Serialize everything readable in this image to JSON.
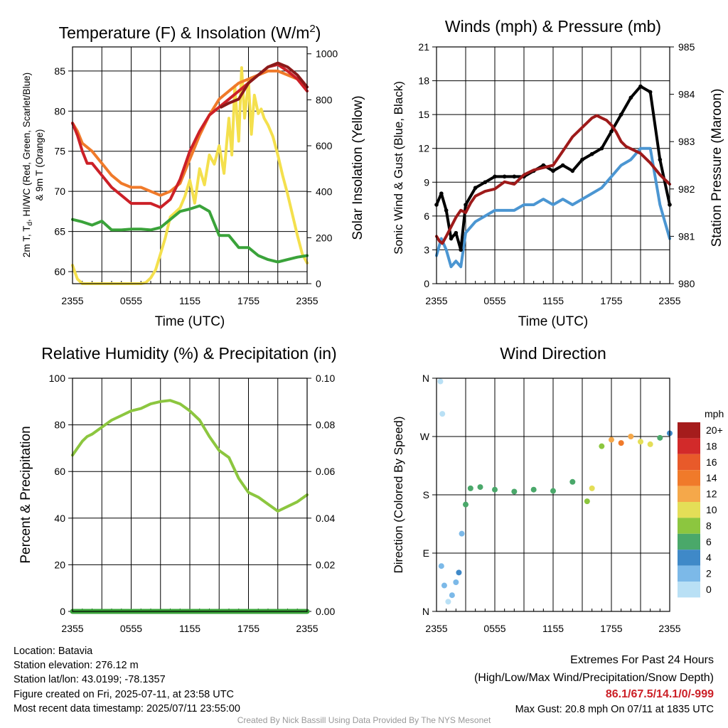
{
  "chart_data": [
    {
      "type": "line",
      "title": "Temperature (F) & Insolation (W/m²)",
      "title_main": "Temperature (F) & Insolation (W/m",
      "title_sup": "2",
      "title_end": ")",
      "xlabel": "Time (UTC)",
      "ylabel_left_line1": "2m T, T",
      "ylabel_left_sub": "d",
      "ylabel_left_line1_end": ", HI/WC (Red, Green, Scarlet/Blue)",
      "ylabel_left_line2": "& 9m T (Orange)",
      "ylabel_right": "Solar Insolation (Yellow)",
      "x_ticks": [
        "2355",
        "0555",
        "1155",
        "1755",
        "2355"
      ],
      "y_ticks_left": [
        60,
        65,
        70,
        75,
        80,
        85
      ],
      "ylim_left": [
        58.5,
        88
      ],
      "y_ticks_right": [
        0,
        200,
        400,
        600,
        800,
        1000
      ],
      "ylim_right": [
        0,
        1030
      ],
      "grid": true,
      "series": [
        {
          "color": "#f4e04d",
          "axis": "right",
          "x": [
            0,
            0.2,
            0.5,
            1,
            2,
            3,
            4,
            5,
            6,
            7,
            7.5,
            8,
            8.5,
            9,
            9.5,
            10,
            10.5,
            11,
            11.5,
            12,
            12.5,
            13,
            13.5,
            14,
            14.5,
            15,
            15.5,
            16,
            16.3,
            16.6,
            17,
            17.3,
            17.6,
            18,
            18.3,
            18.6,
            19,
            19.3,
            19.6,
            20,
            20.5,
            21,
            21.5,
            22,
            22.5,
            23,
            23.5,
            24
          ],
          "values": [
            80,
            55,
            20,
            0,
            0,
            0,
            0,
            0,
            0,
            0,
            5,
            25,
            60,
            130,
            200,
            290,
            310,
            330,
            380,
            450,
            350,
            500,
            430,
            560,
            520,
            600,
            480,
            720,
            560,
            860,
            620,
            940,
            720,
            880,
            650,
            820,
            740,
            760,
            720,
            690,
            640,
            560,
            470,
            390,
            300,
            210,
            130,
            90
          ]
        },
        {
          "color": "#f07a2a",
          "axis": "left",
          "x": [
            0,
            0.5,
            1,
            1.5,
            2,
            3,
            4,
            5,
            6,
            7,
            8,
            9,
            10,
            11,
            12,
            13,
            14,
            15,
            16,
            17,
            18,
            19,
            20,
            21,
            22,
            23,
            24
          ],
          "values": [
            78.5,
            77.5,
            76,
            75.5,
            75,
            73.5,
            72,
            71,
            70.5,
            70.5,
            70,
            69.5,
            70,
            71,
            74,
            77,
            79.5,
            81.5,
            82.5,
            83.5,
            84,
            84.5,
            85,
            85,
            84.5,
            84,
            83
          ]
        },
        {
          "color": "#cc2027",
          "axis": "left",
          "x": [
            0,
            0.5,
            1,
            1.5,
            2,
            3,
            4,
            5,
            6,
            7,
            8,
            9,
            10,
            11,
            12,
            13,
            14,
            15,
            16,
            17,
            18,
            19,
            20,
            21,
            22,
            23,
            24
          ],
          "values": [
            78.5,
            77,
            75,
            73.5,
            73.5,
            72,
            70.5,
            69.5,
            68.5,
            68.5,
            68.5,
            68,
            69,
            71.5,
            75,
            77.5,
            79.5,
            80.5,
            81.5,
            82.5,
            83.5,
            84.5,
            85.5,
            85.8,
            85,
            84,
            82.5
          ]
        },
        {
          "color": "#8b1a1a",
          "axis": "left",
          "x": [
            15.2,
            16,
            17,
            18,
            19,
            20,
            21,
            22,
            23,
            24
          ],
          "values": [
            80.5,
            81,
            81.5,
            83.5,
            84.5,
            85.5,
            86,
            85.5,
            84.5,
            83
          ]
        },
        {
          "color": "#3aa33a",
          "axis": "left",
          "x": [
            0,
            1,
            2,
            3,
            4,
            5,
            6,
            7,
            8,
            9,
            10,
            11,
            12,
            13,
            14,
            15,
            16,
            17,
            18,
            19,
            20,
            21,
            22,
            23,
            24
          ],
          "values": [
            66.5,
            66.2,
            65.8,
            66.3,
            65.2,
            65.2,
            65.3,
            65.3,
            65.2,
            65.5,
            66.5,
            67.5,
            67.8,
            68.2,
            67.5,
            64.5,
            64.5,
            63,
            63,
            62,
            61.5,
            61.2,
            61.5,
            61.8,
            62
          ]
        }
      ]
    },
    {
      "type": "line",
      "title": "Winds (mph) & Pressure (mb)",
      "xlabel": "Time (UTC)",
      "ylabel_left": "Sonic Wind & Gust (Blue, Black)",
      "ylabel_right": "Station Pressure (Maroon)",
      "x_ticks": [
        "2355",
        "0555",
        "1155",
        "1755",
        "2355"
      ],
      "y_ticks_left": [
        0,
        3,
        6,
        9,
        12,
        15,
        18,
        21
      ],
      "ylim_left": [
        0,
        21
      ],
      "y_ticks_right": [
        980,
        981,
        982,
        983,
        984,
        985
      ],
      "ylim_right": [
        980,
        985
      ],
      "grid": true,
      "series": [
        {
          "color": "#4b96d2",
          "axis": "left",
          "x": [
            0,
            0.5,
            1,
            1.5,
            2,
            2.5,
            3,
            4,
            5,
            6,
            7,
            8,
            9,
            10,
            11,
            12,
            13,
            14,
            15,
            16,
            17,
            18,
            19,
            20,
            21,
            22,
            23,
            24
          ],
          "values": [
            2.5,
            4,
            3,
            1.5,
            2,
            1.5,
            4.5,
            5.5,
            6,
            6.5,
            6.5,
            6.5,
            7,
            7,
            7.5,
            7,
            7.5,
            7,
            7.5,
            8,
            8.5,
            9.5,
            10.5,
            11,
            12,
            12,
            7,
            4
          ]
        },
        {
          "color": "#000000",
          "axis": "left",
          "x": [
            0,
            0.5,
            1,
            1.5,
            2,
            2.5,
            3,
            4,
            5,
            6,
            7,
            8,
            9,
            10,
            11,
            12,
            13,
            14,
            15,
            16,
            17,
            18,
            19,
            20,
            21,
            22,
            23,
            24
          ],
          "values": [
            7,
            8,
            6.5,
            4,
            4.5,
            3,
            7,
            8.5,
            9,
            9.5,
            9.5,
            9.5,
            9.5,
            10,
            10.5,
            10,
            10.5,
            10,
            11,
            11.5,
            12,
            13.5,
            15,
            16.5,
            17.5,
            17,
            11,
            7
          ]
        },
        {
          "color": "#9e1a1a",
          "axis": "right",
          "x": [
            0,
            0.3,
            0.6,
            1,
            1.5,
            2,
            2.5,
            3,
            3.5,
            4,
            5,
            6,
            7,
            8,
            9,
            10,
            11,
            12,
            13,
            14,
            15,
            16,
            16.5,
            17,
            17.5,
            18,
            18.5,
            19,
            19.5,
            20,
            21,
            22,
            23,
            24
          ],
          "values": [
            981.0,
            980.9,
            980.85,
            981.0,
            981.2,
            981.4,
            981.55,
            981.5,
            981.7,
            981.85,
            981.95,
            982.0,
            982.15,
            982.1,
            982.3,
            982.4,
            982.45,
            982.5,
            982.8,
            983.1,
            983.3,
            983.5,
            983.55,
            983.5,
            983.45,
            983.35,
            983.2,
            983.0,
            982.9,
            982.85,
            982.75,
            982.55,
            982.3,
            982.1
          ]
        }
      ]
    },
    {
      "type": "line",
      "title": "Relative Humidity (%) & Precipitation (in)",
      "ylabel_left": "Percent & Precipitation",
      "x_ticks": [
        "2355",
        "0555",
        "1155",
        "1755",
        "2355"
      ],
      "y_ticks_left": [
        0,
        20,
        40,
        60,
        80,
        100
      ],
      "ylim_left": [
        0,
        100
      ],
      "y_ticks_right": [
        "0.00",
        "0.02",
        "0.04",
        "0.06",
        "0.08",
        "0.10"
      ],
      "ylim_right": [
        0,
        0.1
      ],
      "grid": true,
      "series": [
        {
          "color": "#8cc63f",
          "axis": "left",
          "x": [
            0,
            0.5,
            1,
            1.5,
            2,
            3,
            4,
            5,
            6,
            7,
            8,
            9,
            10,
            11,
            12,
            13,
            14,
            15,
            16,
            17,
            18,
            19,
            20,
            21,
            22,
            23,
            24
          ],
          "values": [
            67,
            70,
            73,
            75,
            76,
            79,
            82,
            84,
            86,
            87,
            89,
            90,
            90.5,
            89,
            86,
            82,
            75,
            69,
            66,
            57,
            51,
            49,
            46,
            43,
            45,
            47,
            50
          ]
        },
        {
          "color": "#3aa33a",
          "axis": "right",
          "x": [
            0,
            24
          ],
          "values": [
            0,
            0
          ]
        }
      ]
    },
    {
      "type": "scatter",
      "title": "Wind Direction",
      "ylabel_left": "Direction (Colored By Speed)",
      "x_ticks": [
        "2355",
        "0555",
        "1155",
        "1755",
        "2355"
      ],
      "y_ticks_left": [
        "N",
        "E",
        "S",
        "W",
        "N"
      ],
      "y_values": [
        0,
        90,
        180,
        270,
        360
      ],
      "ylim_left": [
        0,
        360
      ],
      "grid": true,
      "colorbar": {
        "unit": "mph",
        "labels": [
          "20+",
          "18",
          "16",
          "14",
          "12",
          "10",
          "8",
          "6",
          "4",
          "2",
          "0"
        ],
        "colors": [
          "#a51c1c",
          "#d22a2a",
          "#e85a2a",
          "#f07a2a",
          "#f5a84a",
          "#e4de57",
          "#8cc63f",
          "#4aa86a",
          "#3f89c8",
          "#7cb9e8",
          "#b9e0f5"
        ]
      },
      "points": [
        {
          "x": 0.4,
          "dir": 355,
          "speed": 1
        },
        {
          "x": 0.6,
          "dir": 305,
          "speed": 1
        },
        {
          "x": 0.5,
          "dir": 70,
          "speed": 3
        },
        {
          "x": 0.8,
          "dir": 40,
          "speed": 2
        },
        {
          "x": 1.2,
          "dir": 15,
          "speed": 1
        },
        {
          "x": 1.6,
          "dir": 25,
          "speed": 2
        },
        {
          "x": 2.0,
          "dir": 45,
          "speed": 3
        },
        {
          "x": 2.3,
          "dir": 60,
          "speed": 4
        },
        {
          "x": 2.6,
          "dir": 120,
          "speed": 2
        },
        {
          "x": 3.0,
          "dir": 165,
          "speed": 6
        },
        {
          "x": 3.5,
          "dir": 190,
          "speed": 6
        },
        {
          "x": 4.5,
          "dir": 192,
          "speed": 6
        },
        {
          "x": 6.0,
          "dir": 188,
          "speed": 7
        },
        {
          "x": 8.0,
          "dir": 185,
          "speed": 6
        },
        {
          "x": 10.0,
          "dir": 188,
          "speed": 7
        },
        {
          "x": 12.0,
          "dir": 186,
          "speed": 6
        },
        {
          "x": 14.0,
          "dir": 200,
          "speed": 7
        },
        {
          "x": 15.5,
          "dir": 170,
          "speed": 8
        },
        {
          "x": 16.0,
          "dir": 190,
          "speed": 10
        },
        {
          "x": 17.0,
          "dir": 255,
          "speed": 8
        },
        {
          "x": 18.0,
          "dir": 265,
          "speed": 12
        },
        {
          "x": 19.0,
          "dir": 260,
          "speed": 14
        },
        {
          "x": 20.0,
          "dir": 270,
          "speed": 12
        },
        {
          "x": 21.0,
          "dir": 262,
          "speed": 10
        },
        {
          "x": 22.0,
          "dir": 258,
          "speed": 11
        },
        {
          "x": 23.0,
          "dir": 268,
          "speed": 6
        },
        {
          "x": 24.0,
          "dir": 275,
          "speed": 4
        }
      ]
    }
  ],
  "info": {
    "location": "Location: Batavia",
    "elevation": "Station elevation: 276.12 m",
    "latlon": "Station lat/lon: 43.0199; -78.1357",
    "created": "Figure created on Fri, 2025-07-11, at 23:58 UTC",
    "recent": "Most recent data timestamp: 2025/07/11 23:55:00",
    "extremes_title": "Extremes For Past 24 Hours",
    "extremes_sub": "(High/Low/Max Wind/Precipitation/Snow Depth)",
    "extremes_values": "86.1/67.5/14.1/0/-999",
    "max_gust": "Max Gust: 20.8 mph On 07/11 at 1835 UTC",
    "credit": "Created By Nick Bassill Using Data Provided By The NYS Mesonet"
  },
  "colors": {
    "extremes": "#cc2027"
  }
}
